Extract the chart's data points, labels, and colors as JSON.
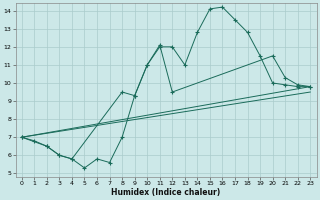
{
  "xlabel": "Humidex (Indice chaleur)",
  "bg_color": "#cce8e8",
  "grid_color": "#aacccc",
  "line_color": "#1a6b5a",
  "xlim": [
    -0.5,
    23.5
  ],
  "ylim": [
    4.8,
    14.4
  ],
  "xticks": [
    0,
    1,
    2,
    3,
    4,
    5,
    6,
    7,
    8,
    9,
    10,
    11,
    12,
    13,
    14,
    15,
    16,
    17,
    18,
    19,
    20,
    21,
    22,
    23
  ],
  "yticks": [
    5,
    6,
    7,
    8,
    9,
    10,
    11,
    12,
    13,
    14
  ],
  "line1_x": [
    0,
    1,
    2,
    3,
    4,
    5,
    6,
    7,
    8,
    9,
    10,
    11,
    12,
    13,
    14,
    15,
    16,
    17,
    18,
    19,
    20,
    21,
    22,
    23
  ],
  "line1_y": [
    7.0,
    6.8,
    6.5,
    6.0,
    5.8,
    5.3,
    5.8,
    5.6,
    7.0,
    9.3,
    11.0,
    12.0,
    12.0,
    11.0,
    12.8,
    14.1,
    14.2,
    13.5,
    12.8,
    11.5,
    10.0,
    9.9,
    9.8,
    9.8
  ],
  "line2_x": [
    0,
    2,
    3,
    4,
    8,
    9,
    10,
    11,
    12,
    20,
    21,
    22,
    23
  ],
  "line2_y": [
    7.0,
    6.5,
    6.0,
    5.8,
    9.5,
    9.3,
    11.0,
    12.1,
    9.5,
    11.5,
    10.3,
    9.9,
    9.8
  ],
  "line3_x": [
    0,
    23
  ],
  "line3_y": [
    7.0,
    9.8
  ],
  "line4_x": [
    0,
    23
  ],
  "line4_y": [
    7.0,
    9.5
  ]
}
